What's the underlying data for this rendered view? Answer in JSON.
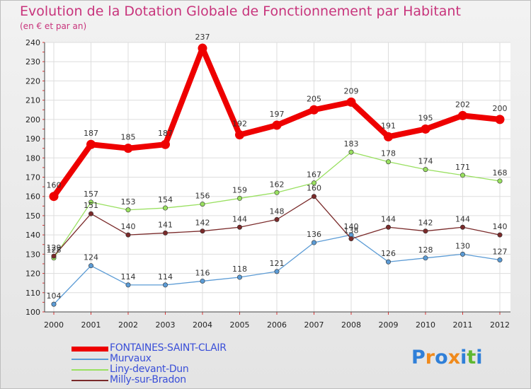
{
  "title": "Evolution de la Dotation Globale de Fonctionnement par Habitant",
  "subtitle": "(en € et par an)",
  "logo_text": "Proxiti",
  "chart_data": {
    "type": "line",
    "categories": [
      "2000",
      "2001",
      "2002",
      "2003",
      "2004",
      "2005",
      "2006",
      "2007",
      "2008",
      "2009",
      "2010",
      "2011",
      "2012"
    ],
    "ylim": [
      100,
      240
    ],
    "yticks": [
      100,
      110,
      120,
      130,
      140,
      150,
      160,
      170,
      180,
      190,
      200,
      210,
      220,
      230,
      240
    ],
    "grid": true,
    "legend_position": "bottom-left",
    "series": [
      {
        "name": "FONTAINES-SAINT-CLAIR",
        "color": "#ee0000",
        "emphasis": true,
        "values": [
          160,
          187,
          185,
          187,
          237,
          192,
          197,
          205,
          209,
          191,
          195,
          202,
          200
        ]
      },
      {
        "name": "Murvaux",
        "color": "#5b9bd5",
        "values": [
          104,
          124,
          114,
          114,
          116,
          118,
          121,
          136,
          140,
          126,
          128,
          130,
          127
        ]
      },
      {
        "name": "Liny-devant-Dun",
        "color": "#99e060",
        "values": [
          128,
          157,
          153,
          154,
          156,
          159,
          162,
          167,
          183,
          178,
          174,
          171,
          168
        ]
      },
      {
        "name": "Milly-sur-Bradon",
        "color": "#7a2a2a",
        "values": [
          129,
          151,
          140,
          141,
          142,
          144,
          148,
          160,
          138,
          144,
          142,
          144,
          140
        ]
      }
    ]
  }
}
